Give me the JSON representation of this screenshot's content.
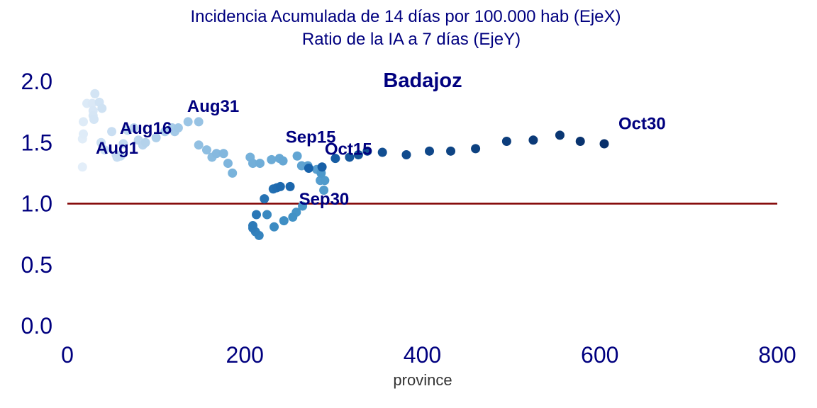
{
  "chart_data": {
    "type": "scatter",
    "title_lines": [
      "Incidencia Acumulada de 14 días por 100.000 hab (EjeX)",
      "Ratio de la IA a 7 días (EjeY)"
    ],
    "subtitle": "Badajoz",
    "xlabel": "province",
    "ylabel": "",
    "xlim": [
      0,
      800
    ],
    "ylim": [
      0,
      2
    ],
    "xticks": [
      "0",
      "200",
      "400",
      "600",
      "800"
    ],
    "yticks": [
      "0.0",
      "0.5",
      "1.0",
      "1.5",
      "2.0"
    ],
    "grid": false,
    "reference_line": {
      "y": 1.0,
      "color": "#800000"
    },
    "color_scale": [
      "#e3eef9",
      "#08306b"
    ],
    "points": [
      {
        "x": 17,
        "y": 1.3
      },
      {
        "x": 17,
        "y": 1.53
      },
      {
        "x": 18,
        "y": 1.57
      },
      {
        "x": 18,
        "y": 1.67
      },
      {
        "x": 22,
        "y": 1.82
      },
      {
        "x": 28,
        "y": 1.82
      },
      {
        "x": 29,
        "y": 1.76
      },
      {
        "x": 29,
        "y": 1.72
      },
      {
        "x": 30,
        "y": 1.69
      },
      {
        "x": 31,
        "y": 1.9
      },
      {
        "x": 36,
        "y": 1.83
      },
      {
        "x": 39,
        "y": 1.78
      },
      {
        "x": 38,
        "y": 1.5
      },
      {
        "x": 42,
        "y": 1.44
      },
      {
        "x": 50,
        "y": 1.59
      },
      {
        "x": 55,
        "y": 1.4
      },
      {
        "x": 56,
        "y": 1.38
      },
      {
        "x": 60,
        "y": 1.39
      },
      {
        "x": 63,
        "y": 1.49
      },
      {
        "x": 68,
        "y": 1.6
      },
      {
        "x": 75,
        "y": 1.62
      },
      {
        "x": 80,
        "y": 1.52
      },
      {
        "x": 85,
        "y": 1.48
      },
      {
        "x": 88,
        "y": 1.5
      },
      {
        "x": 100,
        "y": 1.54
      },
      {
        "x": 110,
        "y": 1.59
      },
      {
        "x": 118,
        "y": 1.62
      },
      {
        "x": 121,
        "y": 1.59
      },
      {
        "x": 125,
        "y": 1.62
      },
      {
        "x": 136,
        "y": 1.67
      },
      {
        "x": 148,
        "y": 1.67
      },
      {
        "x": 148,
        "y": 1.48
      },
      {
        "x": 157,
        "y": 1.44
      },
      {
        "x": 163,
        "y": 1.38
      },
      {
        "x": 168,
        "y": 1.41
      },
      {
        "x": 176,
        "y": 1.41
      },
      {
        "x": 181,
        "y": 1.33
      },
      {
        "x": 186,
        "y": 1.25
      },
      {
        "x": 206,
        "y": 1.38
      },
      {
        "x": 209,
        "y": 1.33
      },
      {
        "x": 217,
        "y": 1.33
      },
      {
        "x": 230,
        "y": 1.36
      },
      {
        "x": 239,
        "y": 1.37
      },
      {
        "x": 243,
        "y": 1.35
      },
      {
        "x": 259,
        "y": 1.39
      },
      {
        "x": 264,
        "y": 1.31
      },
      {
        "x": 271,
        "y": 1.31
      },
      {
        "x": 281,
        "y": 1.28
      },
      {
        "x": 285,
        "y": 1.19
      },
      {
        "x": 289,
        "y": 1.11
      },
      {
        "x": 290,
        "y": 1.19
      },
      {
        "x": 286,
        "y": 1.25
      },
      {
        "x": 265,
        "y": 0.98
      },
      {
        "x": 258,
        "y": 0.93
      },
      {
        "x": 254,
        "y": 0.89
      },
      {
        "x": 244,
        "y": 0.86
      },
      {
        "x": 233,
        "y": 0.81
      },
      {
        "x": 225,
        "y": 0.91
      },
      {
        "x": 216,
        "y": 0.74
      },
      {
        "x": 212,
        "y": 0.77
      },
      {
        "x": 209,
        "y": 0.8
      },
      {
        "x": 209,
        "y": 0.82
      },
      {
        "x": 213,
        "y": 0.91
      },
      {
        "x": 222,
        "y": 1.04
      },
      {
        "x": 232,
        "y": 1.12
      },
      {
        "x": 236,
        "y": 1.13
      },
      {
        "x": 240,
        "y": 1.14
      },
      {
        "x": 251,
        "y": 1.14
      },
      {
        "x": 272,
        "y": 1.29
      },
      {
        "x": 287,
        "y": 1.3
      },
      {
        "x": 302,
        "y": 1.37
      },
      {
        "x": 318,
        "y": 1.38
      },
      {
        "x": 328,
        "y": 1.4
      },
      {
        "x": 338,
        "y": 1.43
      },
      {
        "x": 355,
        "y": 1.42
      },
      {
        "x": 382,
        "y": 1.4
      },
      {
        "x": 408,
        "y": 1.43
      },
      {
        "x": 432,
        "y": 1.43
      },
      {
        "x": 460,
        "y": 1.45
      },
      {
        "x": 495,
        "y": 1.51
      },
      {
        "x": 525,
        "y": 1.52
      },
      {
        "x": 555,
        "y": 1.56
      },
      {
        "x": 578,
        "y": 1.51
      },
      {
        "x": 605,
        "y": 1.49
      }
    ],
    "annotations": [
      {
        "text": "Aug1",
        "x": 32,
        "y": 1.41
      },
      {
        "text": "Aug16",
        "x": 59,
        "y": 1.57
      },
      {
        "text": "Aug31",
        "x": 135,
        "y": 1.75
      },
      {
        "text": "Sep15",
        "x": 246,
        "y": 1.5
      },
      {
        "text": "Sep30",
        "x": 261,
        "y": 0.99
      },
      {
        "text": "Oct15",
        "x": 290,
        "y": 1.4
      },
      {
        "text": "Oct30",
        "x": 621,
        "y": 1.61
      }
    ]
  }
}
